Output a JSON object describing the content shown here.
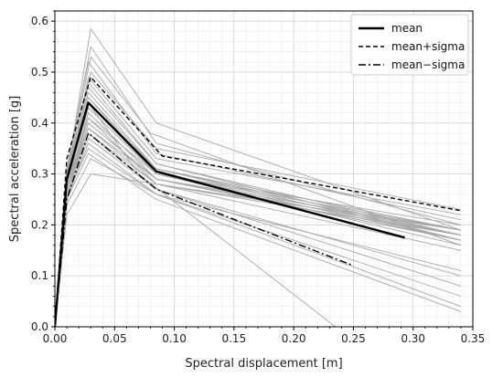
{
  "chart_data": {
    "type": "line",
    "title": "",
    "xlabel": "Spectral displacement [m]",
    "ylabel": "Spectral acceleration [g]",
    "xlim": [
      0,
      0.35
    ],
    "ylim": [
      0,
      0.62
    ],
    "x_ticks": [
      "0.00",
      "0.05",
      "0.10",
      "0.15",
      "0.20",
      "0.25",
      "0.30",
      "0.35"
    ],
    "y_ticks": [
      "0.0",
      "0.1",
      "0.2",
      "0.3",
      "0.4",
      "0.5",
      "0.6"
    ],
    "grid": true,
    "minor_grid": true,
    "legend": {
      "placement": "top-right",
      "entries": [
        "mean",
        "mean+sigma",
        "mean−sigma"
      ]
    },
    "colors": {
      "mean": "#000000",
      "individual": "#a8a8a8",
      "sigma": "#000000"
    },
    "series": [
      {
        "name": "mean",
        "style": "solid",
        "points": [
          [
            0,
            0
          ],
          [
            0.01,
            0.29
          ],
          [
            0.028,
            0.44
          ],
          [
            0.085,
            0.305
          ],
          [
            0.293,
            0.175
          ]
        ]
      },
      {
        "name": "mean+sigma",
        "style": "dashed",
        "points": [
          [
            0,
            0
          ],
          [
            0.01,
            0.33
          ],
          [
            0.03,
            0.49
          ],
          [
            0.09,
            0.335
          ],
          [
            0.34,
            0.228
          ]
        ]
      },
      {
        "name": "mean−sigma",
        "style": "dashdot",
        "points": [
          [
            0,
            0
          ],
          [
            0.01,
            0.25
          ],
          [
            0.028,
            0.38
          ],
          [
            0.085,
            0.27
          ],
          [
            0.25,
            0.12
          ]
        ]
      }
    ],
    "individual_curves": [
      [
        [
          0,
          0
        ],
        [
          0.01,
          0.3
        ],
        [
          0.03,
          0.585
        ],
        [
          0.085,
          0.4
        ],
        [
          0.34,
          0.19
        ]
      ],
      [
        [
          0,
          0
        ],
        [
          0.01,
          0.31
        ],
        [
          0.03,
          0.55
        ],
        [
          0.085,
          0.36
        ],
        [
          0.34,
          0.2
        ]
      ],
      [
        [
          0,
          0
        ],
        [
          0.01,
          0.3
        ],
        [
          0.03,
          0.53
        ],
        [
          0.08,
          0.38
        ],
        [
          0.34,
          0.16
        ]
      ],
      [
        [
          0,
          0
        ],
        [
          0.01,
          0.31
        ],
        [
          0.028,
          0.52
        ],
        [
          0.085,
          0.34
        ],
        [
          0.34,
          0.21
        ]
      ],
      [
        [
          0,
          0
        ],
        [
          0.01,
          0.3
        ],
        [
          0.03,
          0.5
        ],
        [
          0.085,
          0.35
        ],
        [
          0.34,
          0.23
        ]
      ],
      [
        [
          0,
          0
        ],
        [
          0.01,
          0.29
        ],
        [
          0.028,
          0.49
        ],
        [
          0.085,
          0.33
        ],
        [
          0.34,
          0.22
        ]
      ],
      [
        [
          0,
          0
        ],
        [
          0.01,
          0.3
        ],
        [
          0.028,
          0.48
        ],
        [
          0.085,
          0.32
        ],
        [
          0.34,
          0.18
        ]
      ],
      [
        [
          0,
          0
        ],
        [
          0.01,
          0.29
        ],
        [
          0.028,
          0.47
        ],
        [
          0.085,
          0.32
        ],
        [
          0.34,
          0.17
        ]
      ],
      [
        [
          0,
          0
        ],
        [
          0.01,
          0.29
        ],
        [
          0.028,
          0.46
        ],
        [
          0.085,
          0.31
        ],
        [
          0.34,
          0.19
        ]
      ],
      [
        [
          0,
          0
        ],
        [
          0.01,
          0.28
        ],
        [
          0.028,
          0.45
        ],
        [
          0.085,
          0.31
        ],
        [
          0.34,
          0.18
        ]
      ],
      [
        [
          0,
          0
        ],
        [
          0.01,
          0.29
        ],
        [
          0.028,
          0.45
        ],
        [
          0.085,
          0.3
        ],
        [
          0.34,
          0.17
        ]
      ],
      [
        [
          0,
          0
        ],
        [
          0.01,
          0.28
        ],
        [
          0.028,
          0.44
        ],
        [
          0.085,
          0.3
        ],
        [
          0.34,
          0.19
        ]
      ],
      [
        [
          0,
          0
        ],
        [
          0.01,
          0.28
        ],
        [
          0.028,
          0.44
        ],
        [
          0.085,
          0.31
        ],
        [
          0.34,
          0.17
        ]
      ],
      [
        [
          0,
          0
        ],
        [
          0.01,
          0.28
        ],
        [
          0.028,
          0.43
        ],
        [
          0.085,
          0.3
        ],
        [
          0.34,
          0.18
        ]
      ],
      [
        [
          0,
          0
        ],
        [
          0.01,
          0.28
        ],
        [
          0.028,
          0.43
        ],
        [
          0.085,
          0.3
        ],
        [
          0.34,
          0.16
        ]
      ],
      [
        [
          0,
          0
        ],
        [
          0.01,
          0.27
        ],
        [
          0.028,
          0.42
        ],
        [
          0.085,
          0.29
        ],
        [
          0.34,
          0.18
        ]
      ],
      [
        [
          0,
          0
        ],
        [
          0.01,
          0.27
        ],
        [
          0.028,
          0.42
        ],
        [
          0.085,
          0.29
        ],
        [
          0.34,
          0.17
        ]
      ],
      [
        [
          0,
          0
        ],
        [
          0.01,
          0.28
        ],
        [
          0.028,
          0.41
        ],
        [
          0.085,
          0.3
        ],
        [
          0.34,
          0.2
        ]
      ],
      [
        [
          0,
          0
        ],
        [
          0.01,
          0.27
        ],
        [
          0.028,
          0.41
        ],
        [
          0.085,
          0.28
        ],
        [
          0.34,
          0.18
        ]
      ],
      [
        [
          0,
          0
        ],
        [
          0.01,
          0.27
        ],
        [
          0.028,
          0.4
        ],
        [
          0.085,
          0.29
        ],
        [
          0.34,
          0.19
        ]
      ],
      [
        [
          0,
          0
        ],
        [
          0.01,
          0.26
        ],
        [
          0.028,
          0.4
        ],
        [
          0.085,
          0.29
        ],
        [
          0.34,
          0.17
        ]
      ],
      [
        [
          0,
          0
        ],
        [
          0.01,
          0.27
        ],
        [
          0.028,
          0.39
        ],
        [
          0.085,
          0.28
        ],
        [
          0.34,
          0.18
        ]
      ],
      [
        [
          0,
          0
        ],
        [
          0.01,
          0.26
        ],
        [
          0.028,
          0.39
        ],
        [
          0.085,
          0.29
        ],
        [
          0.34,
          0.17
        ]
      ],
      [
        [
          0,
          0
        ],
        [
          0.01,
          0.26
        ],
        [
          0.028,
          0.38
        ],
        [
          0.085,
          0.28
        ],
        [
          0.34,
          0.19
        ]
      ],
      [
        [
          0,
          0
        ],
        [
          0.01,
          0.26
        ],
        [
          0.028,
          0.38
        ],
        [
          0.085,
          0.27
        ],
        [
          0.34,
          0.1
        ]
      ],
      [
        [
          0,
          0
        ],
        [
          0.01,
          0.25
        ],
        [
          0.028,
          0.37
        ],
        [
          0.085,
          0.27
        ],
        [
          0.34,
          0.08
        ]
      ],
      [
        [
          0,
          0
        ],
        [
          0.01,
          0.25
        ],
        [
          0.028,
          0.36
        ],
        [
          0.085,
          0.26
        ],
        [
          0.34,
          0.06
        ]
      ],
      [
        [
          0,
          0
        ],
        [
          0.01,
          0.26
        ],
        [
          0.028,
          0.35
        ],
        [
          0.085,
          0.26
        ],
        [
          0.34,
          0.04
        ]
      ],
      [
        [
          0,
          0
        ],
        [
          0.01,
          0.25
        ],
        [
          0.028,
          0.34
        ],
        [
          0.085,
          0.25
        ],
        [
          0.34,
          0.03
        ]
      ],
      [
        [
          0,
          0
        ],
        [
          0.01,
          0.22
        ],
        [
          0.03,
          0.3
        ],
        [
          0.085,
          0.28
        ],
        [
          0.34,
          0.15
        ]
      ],
      [
        [
          0,
          0
        ],
        [
          0.01,
          0.3
        ],
        [
          0.028,
          0.44
        ],
        [
          0.07,
          0.3
        ],
        [
          0.235,
          0.0
        ]
      ],
      [
        [
          0,
          0
        ],
        [
          0.01,
          0.24
        ],
        [
          0.03,
          0.33
        ],
        [
          0.085,
          0.26
        ],
        [
          0.34,
          0.11
        ]
      ]
    ]
  }
}
